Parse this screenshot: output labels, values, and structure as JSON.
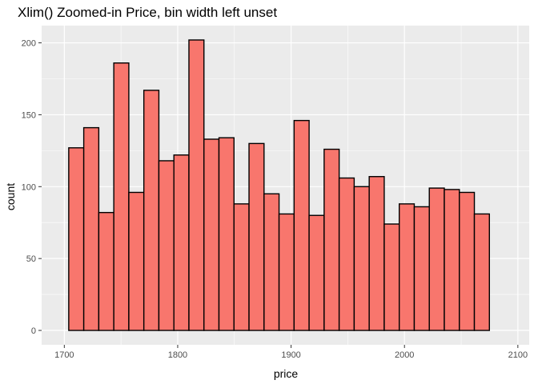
{
  "chart_data": {
    "type": "histogram",
    "title": "Xlim() Zoomed-in Price, bin width left unset",
    "xlabel": "price",
    "ylabel": "count",
    "xlim": [
      1680,
      2110
    ],
    "ylim": [
      -10,
      212
    ],
    "x_ticks": [
      1700,
      1800,
      1900,
      2000,
      2100
    ],
    "y_ticks": [
      0,
      50,
      100,
      150,
      200
    ],
    "x_tick_labels": [
      "1700",
      "1800",
      "1900",
      "2000",
      "2100"
    ],
    "y_tick_labels": [
      "0",
      "50",
      "100",
      "150",
      "200"
    ],
    "bin_start": 1703.9,
    "bin_width": 13.25,
    "values": [
      127,
      141,
      82,
      186,
      96,
      167,
      118,
      122,
      202,
      133,
      134,
      88,
      130,
      95,
      81,
      146,
      80,
      126,
      106,
      100,
      107,
      74,
      88,
      86,
      99,
      98,
      96,
      81
    ],
    "grid": true,
    "bar_fill": "#F8766D",
    "bar_stroke": "#000000",
    "panel_background": "#EBEBEB",
    "grid_color": "#FFFFFF"
  }
}
